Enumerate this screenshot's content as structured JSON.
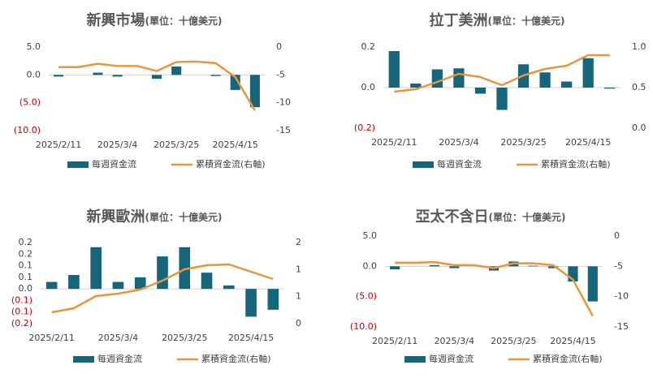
{
  "chart_data": [
    {
      "type": "combo",
      "title": "新興市場",
      "unit": "(單位：十億美元)",
      "categories": [
        "2025/2/11",
        null,
        null,
        "2025/3/4",
        null,
        null,
        "2025/3/25",
        null,
        null,
        "2025/4/15",
        null
      ],
      "series": [
        {
          "name": "每週資金流",
          "type": "bar",
          "color": "#17657a",
          "values": [
            -0.3,
            0,
            0.4,
            -0.3,
            0,
            -0.7,
            1.5,
            0,
            -0.2,
            -2.7,
            -5.8
          ]
        },
        {
          "name": "累積資金流(右軸)",
          "type": "line",
          "color": "#e6963c",
          "axis": "y2",
          "values": [
            -3.6,
            -3.6,
            -3.0,
            -3.4,
            -3.4,
            -4.3,
            -2.7,
            -2.6,
            -2.9,
            -5.4,
            -11.4
          ]
        }
      ],
      "ylim": [
        -10,
        5
      ],
      "yticks": [
        {
          "value": 5,
          "label": "5.0"
        },
        {
          "value": 0,
          "label": "0.0"
        },
        {
          "value": -5,
          "label": "(5.0)"
        },
        {
          "value": -10,
          "label": "(10.0)"
        }
      ],
      "y2lim": [
        -15,
        0
      ],
      "y2ticks": [
        0,
        -5,
        -10,
        -15
      ],
      "negative_label_color": "#c00000"
    },
    {
      "type": "combo",
      "title": "拉丁美洲",
      "unit": "(單位：十億美元)",
      "categories": [
        "2025/2/11",
        null,
        null,
        "2025/3/4",
        null,
        null,
        "2025/3/25",
        null,
        null,
        "2025/4/15",
        null
      ],
      "series": [
        {
          "name": "每週資金流",
          "type": "bar",
          "color": "#17657a",
          "values": [
            0.18,
            0.02,
            0.09,
            0.095,
            -0.03,
            -0.11,
            0.115,
            0.075,
            0.03,
            0.145,
            -0.005
          ]
        },
        {
          "name": "累積資金流(右軸)",
          "type": "line",
          "color": "#e6963c",
          "axis": "y2",
          "values": [
            0.45,
            0.48,
            0.57,
            0.67,
            0.63,
            0.53,
            0.65,
            0.73,
            0.77,
            0.9,
            0.9
          ]
        }
      ],
      "ylim": [
        -0.2,
        0.2
      ],
      "yticks": [
        {
          "value": 0.2,
          "label": "0.2"
        },
        {
          "value": 0,
          "label": "0.0"
        },
        {
          "value": -0.2,
          "label": "(0.2)"
        }
      ],
      "y2lim": [
        0,
        1
      ],
      "y2ticks": [
        {
          "value": 1,
          "label": "1.0"
        },
        {
          "value": 0.5,
          "label": "0.5"
        },
        {
          "value": 0,
          "label": "0.0"
        }
      ],
      "negative_label_color": "#c00000"
    },
    {
      "type": "combo",
      "title": "新興歐洲",
      "unit": "(單位：十億美元)",
      "categories": [
        "2025/2/11",
        null,
        null,
        "2025/3/4",
        null,
        null,
        "2025/3/25",
        null,
        null,
        "2025/4/15",
        null
      ],
      "series": [
        {
          "name": "每週資金流",
          "type": "bar",
          "color": "#17657a",
          "values": [
            0.03,
            0.06,
            0.18,
            0.03,
            0.05,
            0.14,
            0.18,
            0.07,
            0.015,
            -0.12,
            -0.09
          ]
        },
        {
          "name": "累積資金流(右軸)",
          "type": "line",
          "color": "#e6963c",
          "axis": "y2",
          "values": [
            0.28,
            0.38,
            0.68,
            0.74,
            0.84,
            1.06,
            1.34,
            1.44,
            1.46,
            1.28,
            1.1
          ]
        }
      ],
      "ylim": [
        -0.15,
        0.2
      ],
      "yticks": [
        {
          "value": 0.2,
          "label": "0.2"
        },
        {
          "value": 0.15,
          "label": "0.2"
        },
        {
          "value": 0.1,
          "label": "0.1"
        },
        {
          "value": 0.05,
          "label": "0.1"
        },
        {
          "value": 0,
          "label": "0.0"
        },
        {
          "value": -0.05,
          "label": "(0.1)"
        },
        {
          "value": -0.1,
          "label": "(0.1)"
        },
        {
          "value": -0.15,
          "label": "(0.2)"
        }
      ],
      "y2lim": [
        0,
        2
      ],
      "y2ticks": [
        2,
        {
          "value": 1.333,
          "label": "1"
        },
        {
          "value": 0.667,
          "label": "1"
        },
        0
      ],
      "negative_label_color": "#c00000"
    },
    {
      "type": "combo",
      "title": "亞太不含日",
      "unit": "(單位：十億美元)",
      "categories": [
        "2025/2/11",
        null,
        null,
        "2025/3/4",
        null,
        null,
        "2025/3/25",
        null,
        null,
        "2025/4/15",
        null
      ],
      "series": [
        {
          "name": "每週資金流",
          "type": "bar",
          "color": "#17657a",
          "values": [
            -0.5,
            0,
            0.2,
            -0.3,
            0,
            -0.7,
            0.8,
            0.1,
            -0.3,
            -2.5,
            -5.8
          ]
        },
        {
          "name": "累積資金流(右軸)",
          "type": "line",
          "color": "#e6963c",
          "axis": "y2",
          "values": [
            -4.4,
            -4.4,
            -4.3,
            -4.8,
            -4.8,
            -5.3,
            -4.5,
            -4.5,
            -4.8,
            -7.2,
            -13.2
          ]
        }
      ],
      "ylim": [
        -10,
        5
      ],
      "yticks": [
        {
          "value": 5,
          "label": "5.0"
        },
        {
          "value": 0,
          "label": "0.0"
        },
        {
          "value": -5,
          "label": "(5.0)"
        },
        {
          "value": -10,
          "label": "(10.0)"
        }
      ],
      "y2lim": [
        -15,
        0
      ],
      "y2ticks": [
        0,
        -5,
        -10,
        -15
      ],
      "negative_label_color": "#c00000"
    }
  ]
}
